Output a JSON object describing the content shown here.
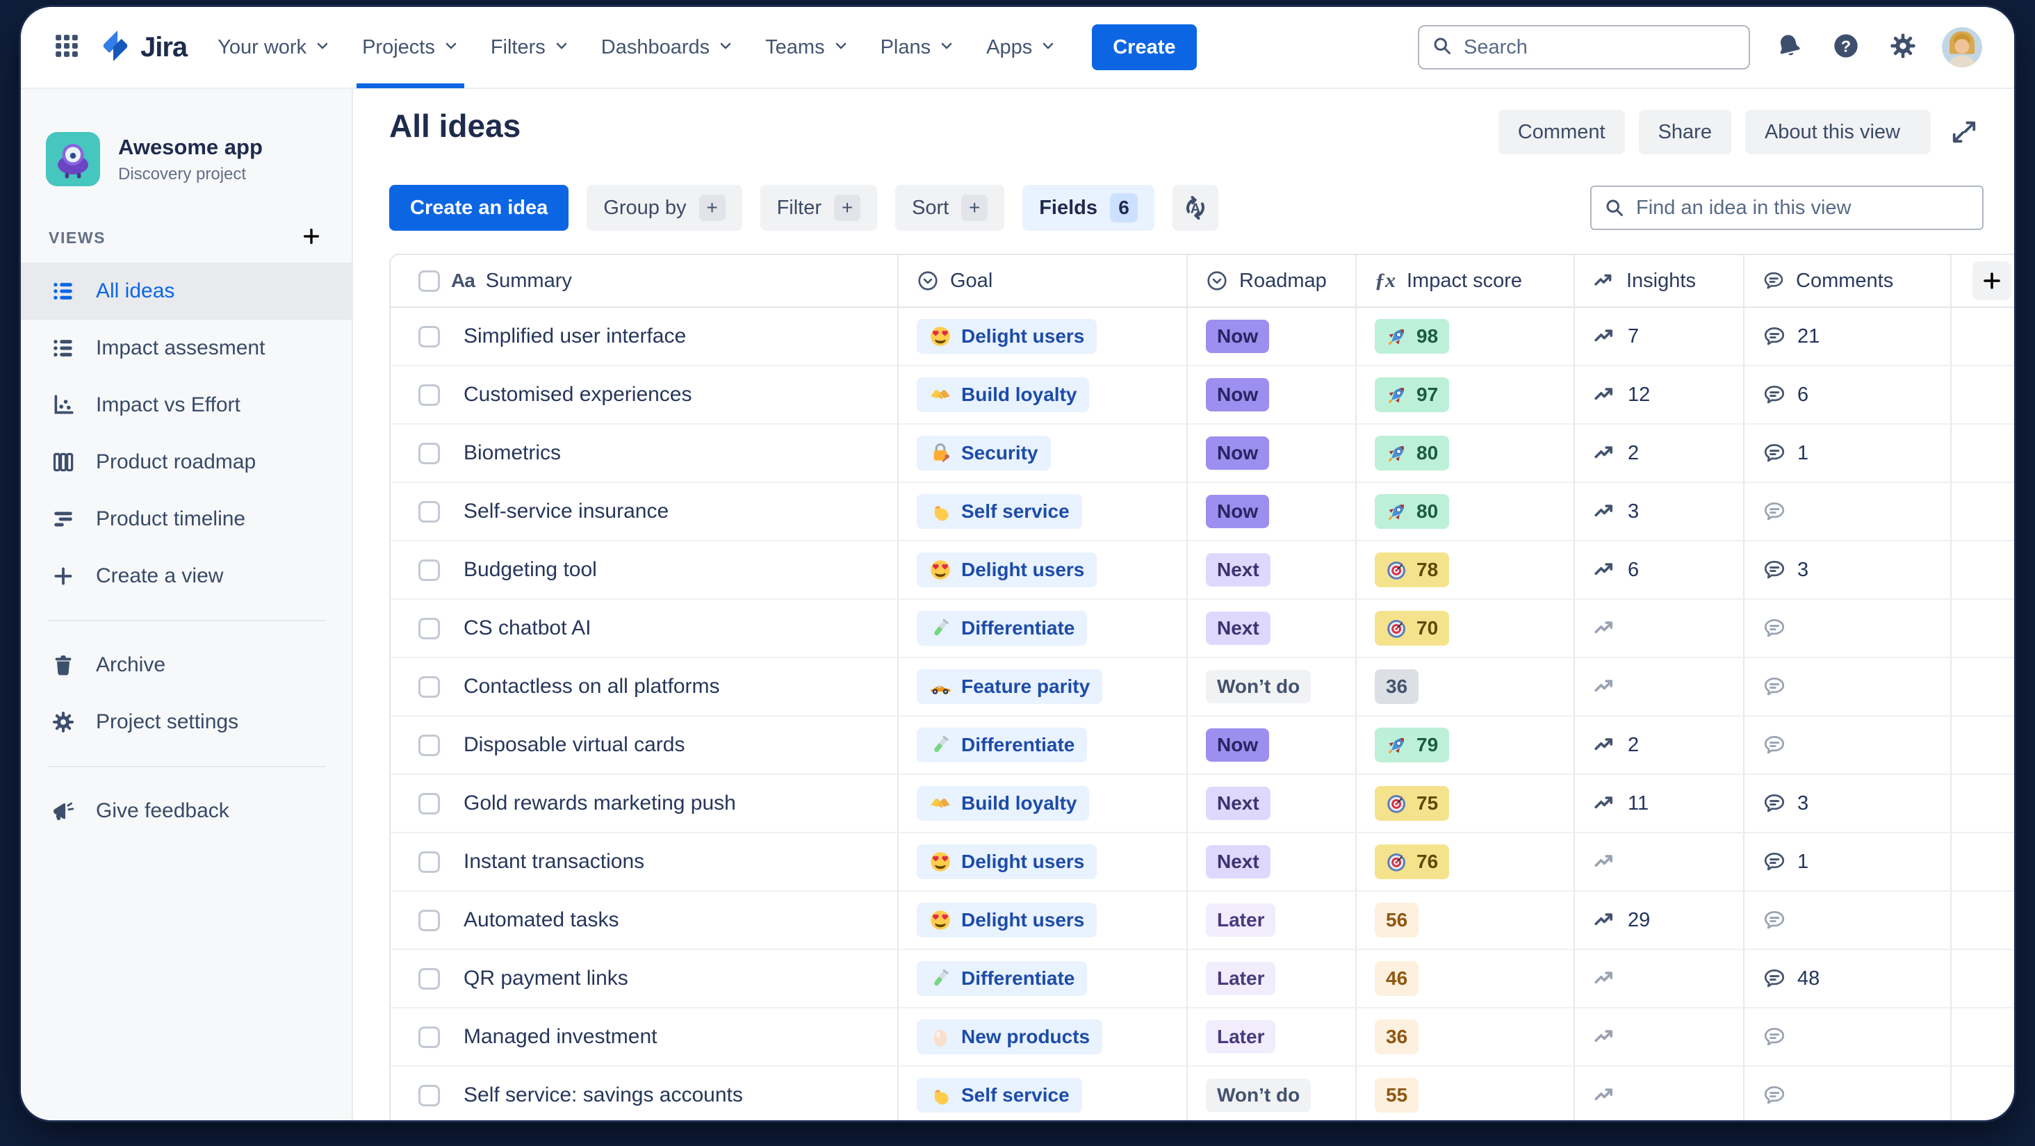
{
  "topnav": {
    "logo_text": "Jira",
    "menu": [
      "Your work",
      "Projects",
      "Filters",
      "Dashboards",
      "Teams",
      "Plans",
      "Apps"
    ],
    "active_menu": "Projects",
    "create_label": "Create",
    "search_placeholder": "Search"
  },
  "sidebar": {
    "project_name": "Awesome app",
    "project_type": "Discovery project",
    "views_label": "VIEWS",
    "views": [
      {
        "label": "All ideas",
        "icon": "list-view-icon",
        "active": true
      },
      {
        "label": "Impact assesment",
        "icon": "list-view-icon",
        "active": false
      },
      {
        "label": "Impact vs Effort",
        "icon": "scatter-icon",
        "active": false
      },
      {
        "label": "Product roadmap",
        "icon": "columns-icon",
        "active": false
      },
      {
        "label": "Product timeline",
        "icon": "timeline-icon",
        "active": false
      },
      {
        "label": "Create a view",
        "icon": "plus-icon",
        "active": false
      }
    ],
    "tools": [
      {
        "label": "Archive",
        "icon": "trash-icon"
      },
      {
        "label": "Project settings",
        "icon": "gear-icon"
      }
    ],
    "footer": [
      {
        "label": "Give feedback",
        "icon": "megaphone-icon"
      }
    ]
  },
  "view_header": {
    "title": "All ideas",
    "comment_label": "Comment",
    "share_label": "Share",
    "about_label": "About this view"
  },
  "toolbar": {
    "create_idea_label": "Create an idea",
    "group_by_label": "Group by",
    "filter_label": "Filter",
    "sort_label": "Sort",
    "fields_label": "Fields",
    "fields_count": "6",
    "find_placeholder": "Find an idea in this view"
  },
  "table": {
    "columns": [
      {
        "label": "Summary",
        "icon": "text-type-icon"
      },
      {
        "label": "Goal",
        "icon": "circle-chevron-icon"
      },
      {
        "label": "Roadmap",
        "icon": "circle-chevron-icon"
      },
      {
        "label": "Impact score",
        "icon": "formula-fx-icon"
      },
      {
        "label": "Insights",
        "icon": "trend-icon"
      },
      {
        "label": "Comments",
        "icon": "comment-icon"
      }
    ],
    "rows": [
      {
        "summary": "Simplified user interface",
        "goal": {
          "label": "Delight users",
          "emoji": "heart-eyes"
        },
        "roadmap": {
          "label": "Now",
          "tone": "now"
        },
        "impact": {
          "value": "98",
          "tone": "green",
          "emoji": "rocket"
        },
        "insights": "7",
        "comments": "21"
      },
      {
        "summary": "Customised experiences",
        "goal": {
          "label": "Build loyalty",
          "emoji": "handshake"
        },
        "roadmap": {
          "label": "Now",
          "tone": "now"
        },
        "impact": {
          "value": "97",
          "tone": "green",
          "emoji": "rocket"
        },
        "insights": "12",
        "comments": "6"
      },
      {
        "summary": "Biometrics",
        "goal": {
          "label": "Security",
          "emoji": "lock"
        },
        "roadmap": {
          "label": "Now",
          "tone": "now"
        },
        "impact": {
          "value": "80",
          "tone": "green",
          "emoji": "rocket"
        },
        "insights": "2",
        "comments": "1"
      },
      {
        "summary": "Self-service insurance",
        "goal": {
          "label": "Self service",
          "emoji": "biceps"
        },
        "roadmap": {
          "label": "Now",
          "tone": "now"
        },
        "impact": {
          "value": "80",
          "tone": "green",
          "emoji": "rocket"
        },
        "insights": "3",
        "comments": null
      },
      {
        "summary": "Budgeting tool",
        "goal": {
          "label": "Delight users",
          "emoji": "heart-eyes"
        },
        "roadmap": {
          "label": "Next",
          "tone": "next"
        },
        "impact": {
          "value": "78",
          "tone": "yellow",
          "emoji": "dart"
        },
        "insights": "6",
        "comments": "3"
      },
      {
        "summary": "CS chatbot AI",
        "goal": {
          "label": "Differentiate",
          "emoji": "test-tube"
        },
        "roadmap": {
          "label": "Next",
          "tone": "next"
        },
        "impact": {
          "value": "70",
          "tone": "yellow",
          "emoji": "dart"
        },
        "insights": null,
        "comments": null
      },
      {
        "summary": "Contactless on all platforms",
        "goal": {
          "label": "Feature parity",
          "emoji": "race-car"
        },
        "roadmap": {
          "label": "Won’t do",
          "tone": "wont"
        },
        "impact": {
          "value": "36",
          "tone": "gray",
          "emoji": null
        },
        "insights": null,
        "comments": null
      },
      {
        "summary": "Disposable virtual cards",
        "goal": {
          "label": "Differentiate",
          "emoji": "test-tube"
        },
        "roadmap": {
          "label": "Now",
          "tone": "now"
        },
        "impact": {
          "value": "79",
          "tone": "green",
          "emoji": "rocket"
        },
        "insights": "2",
        "comments": null
      },
      {
        "summary": "Gold rewards marketing push",
        "goal": {
          "label": "Build loyalty",
          "emoji": "handshake"
        },
        "roadmap": {
          "label": "Next",
          "tone": "next"
        },
        "impact": {
          "value": "75",
          "tone": "yellow",
          "emoji": "dart"
        },
        "insights": "11",
        "comments": "3"
      },
      {
        "summary": "Instant transactions",
        "goal": {
          "label": "Delight users",
          "emoji": "heart-eyes"
        },
        "roadmap": {
          "label": "Next",
          "tone": "next"
        },
        "impact": {
          "value": "76",
          "tone": "yellow",
          "emoji": "dart"
        },
        "insights": null,
        "comments": "1"
      },
      {
        "summary": "Automated tasks",
        "goal": {
          "label": "Delight users",
          "emoji": "heart-eyes"
        },
        "roadmap": {
          "label": "Later",
          "tone": "later"
        },
        "impact": {
          "value": "56",
          "tone": "cream",
          "emoji": null
        },
        "insights": "29",
        "comments": null
      },
      {
        "summary": "QR payment links",
        "goal": {
          "label": "Differentiate",
          "emoji": "test-tube"
        },
        "roadmap": {
          "label": "Later",
          "tone": "later"
        },
        "impact": {
          "value": "46",
          "tone": "cream",
          "emoji": null
        },
        "insights": null,
        "comments": "48"
      },
      {
        "summary": "Managed investment",
        "goal": {
          "label": "New products",
          "emoji": "egg"
        },
        "roadmap": {
          "label": "Later",
          "tone": "later"
        },
        "impact": {
          "value": "36",
          "tone": "cream",
          "emoji": null
        },
        "insights": null,
        "comments": null
      },
      {
        "summary": "Self service: savings accounts",
        "goal": {
          "label": "Self service",
          "emoji": "biceps"
        },
        "roadmap": {
          "label": "Won’t do",
          "tone": "wont"
        },
        "impact": {
          "value": "55",
          "tone": "cream",
          "emoji": null
        },
        "insights": null,
        "comments": null
      }
    ]
  },
  "colors": {
    "accent_blue": "#0C66E4",
    "text_navy": "#1E2B4D",
    "sidebar_bg": "#F7F8F9",
    "goal_pill_bg": "#E9F2FF",
    "goal_pill_text": "#1D4CA8",
    "roadmap_now_bg": "#9C8FF0",
    "roadmap_next_bg": "#DFD8FD",
    "roadmap_later_bg": "#F1EDFD",
    "roadmap_wont_bg": "#F1F2F4",
    "impact_green_bg": "#BDF0D8",
    "impact_yellow_bg": "#F5E28C",
    "impact_cream_bg": "#FDF0DE",
    "impact_gray_bg": "#DCDFE4"
  }
}
